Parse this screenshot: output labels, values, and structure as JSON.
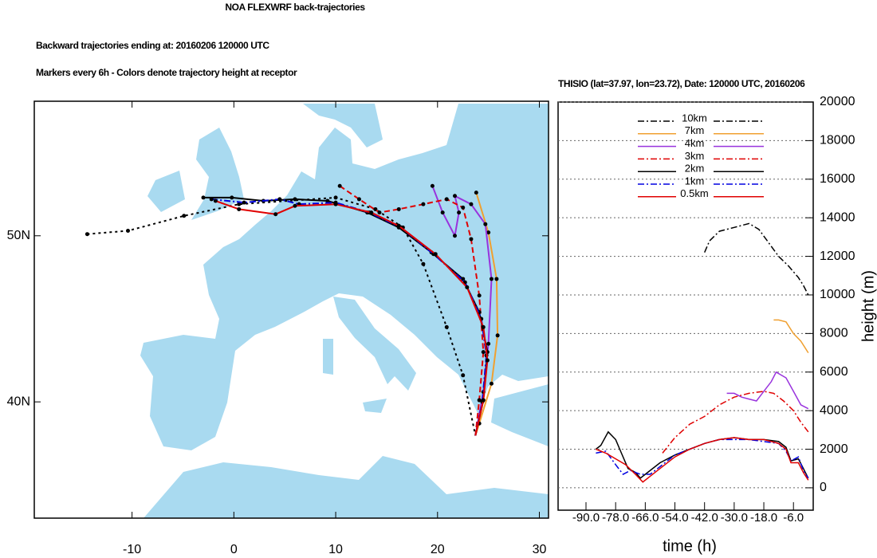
{
  "header": {
    "title": "NOA FLEXWRF back-trajectories",
    "subtitle": "Backward trajectories ending at: 20160206  120000 UTC",
    "note": "Markers every 6h - Colors denote trajectory height at receptor"
  },
  "chart_data": [
    {
      "type": "trajectory-map",
      "xlim": [
        -19.6,
        30.9
      ],
      "ylim": [
        33.0,
        58.1
      ],
      "xticks": [
        -10,
        0,
        10,
        20,
        30
      ],
      "yticks": [
        {
          "value": 40,
          "label": "40N"
        },
        {
          "value": 50,
          "label": "50N"
        }
      ],
      "series": [
        {
          "color": "#000000",
          "dash": "dot",
          "x": [
            -14.4,
            -10.4,
            -4.9,
            0.5,
            10.0,
            13.9,
            16.6,
            18.6,
            20.9,
            22.5,
            23.72
          ],
          "values": [
            50.1,
            50.3,
            51.2,
            51.9,
            52.3,
            51.6,
            50.5,
            48.3,
            44.5,
            41.6,
            37.97
          ]
        },
        {
          "color": "#f0a030",
          "dash": "solid",
          "x": [
            23.8,
            25.0,
            25.8,
            25.9,
            25.3,
            24.1,
            23.72
          ],
          "values": [
            52.6,
            50.2,
            47.4,
            44.0,
            41.1,
            38.7,
            37.97
          ]
        },
        {
          "color": "#9933dd",
          "dash": "solid",
          "x": [
            19.5,
            20.5,
            21.7,
            22.1,
            21.7,
            23.3,
            24.7,
            25.3,
            25.0,
            24.5,
            23.72
          ],
          "values": [
            53.0,
            51.4,
            50.0,
            51.4,
            52.4,
            51.9,
            50.7,
            47.4,
            43.5,
            40.6,
            37.97
          ]
        },
        {
          "color": "#e00000",
          "dash": "dash",
          "x": [
            10.4,
            12.3,
            14.3,
            16.2,
            18.6,
            20.9,
            22.5,
            23.3,
            24.1,
            24.5,
            24.1,
            23.72
          ],
          "values": [
            53.0,
            52.2,
            51.4,
            51.6,
            51.9,
            52.2,
            51.7,
            49.8,
            46.4,
            43.0,
            40.1,
            37.97
          ]
        },
        {
          "color": "#000000",
          "dash": "solid",
          "x": [
            -3.0,
            -0.2,
            2.9,
            6.0,
            9.2,
            13.1,
            16.2,
            19.4,
            22.5,
            24.1,
            24.9,
            24.5,
            23.72
          ],
          "values": [
            52.3,
            52.3,
            52.1,
            52.2,
            52.1,
            51.4,
            50.5,
            49.0,
            47.4,
            45.4,
            43.0,
            40.1,
            37.97
          ]
        },
        {
          "color": "#0000e0",
          "dash": "dashdot",
          "x": [
            -2.2,
            1.0,
            4.5,
            6.4,
            10.0,
            13.3,
            16.4,
            19.6,
            22.7,
            24.3,
            24.8,
            24.4,
            23.72
          ],
          "values": [
            52.2,
            52.0,
            52.2,
            51.9,
            52.0,
            51.4,
            50.5,
            48.9,
            47.2,
            45.0,
            42.8,
            40.0,
            37.97
          ]
        },
        {
          "color": "#e00000",
          "dash": "solid",
          "x": [
            -1.8,
            0.5,
            4.1,
            6.0,
            10.0,
            13.5,
            16.2,
            19.8,
            22.9,
            24.5,
            24.9,
            24.5,
            23.72
          ],
          "values": [
            52.1,
            51.6,
            51.3,
            51.8,
            51.9,
            51.4,
            50.6,
            48.9,
            46.9,
            44.5,
            42.5,
            40.1,
            37.97
          ]
        }
      ]
    },
    {
      "type": "line",
      "title": "THISIO (lat=37.97,  lon=23.72), Date: 120000 UTC, 20160206",
      "x_label": "time (h)",
      "y_label": "height (m)",
      "xlim": [
        -101.3,
        2
      ],
      "ylim": [
        -1160,
        20000
      ],
      "xticks": [
        {
          "value": -90,
          "label": "-90.0"
        },
        {
          "value": -78,
          "label": "-78.0"
        },
        {
          "value": -66,
          "label": "-66.0"
        },
        {
          "value": -54,
          "label": "-54.0"
        },
        {
          "value": -42,
          "label": "-42.0"
        },
        {
          "value": -30,
          "label": "-30.0"
        },
        {
          "value": -18,
          "label": "-18.0"
        },
        {
          "value": -6,
          "label": "-6.0"
        }
      ],
      "yticks": [
        0,
        2000,
        4000,
        6000,
        8000,
        10000,
        12000,
        14000,
        16000,
        18000,
        20000
      ],
      "grid": true,
      "series": [
        {
          "name": "10km",
          "color": "#000000",
          "dash": "dashdot",
          "x": [
            -42,
            -40,
            -36,
            -30,
            -24,
            -20,
            -16,
            -12,
            -8,
            -4,
            -2,
            0
          ],
          "values": [
            12200,
            12800,
            13300,
            13500,
            13700,
            13400,
            12700,
            12000,
            11500,
            10900,
            10500,
            10000
          ]
        },
        {
          "name": "7km",
          "color": "#f0a030",
          "dash": "solid",
          "x": [
            -14,
            -12,
            -9,
            -6,
            -3,
            -1,
            0
          ],
          "values": [
            8700,
            8700,
            8600,
            8000,
            7600,
            7200,
            7000
          ]
        },
        {
          "name": "4km",
          "color": "#9933dd",
          "dash": "solid",
          "x": [
            -33,
            -30,
            -27,
            -24,
            -21,
            -18,
            -15,
            -13,
            -9,
            -6,
            -3,
            0
          ],
          "values": [
            4900,
            4900,
            4700,
            4600,
            4500,
            5000,
            5500,
            6000,
            5700,
            5000,
            4300,
            4100
          ]
        },
        {
          "name": "3km",
          "color": "#e00000",
          "dash": "dashdot",
          "x": [
            -59,
            -54,
            -48,
            -42,
            -36,
            -30,
            -24,
            -18,
            -14,
            -10,
            -6,
            -3,
            0
          ],
          "values": [
            1800,
            2600,
            3300,
            3700,
            4300,
            4700,
            4900,
            5000,
            4900,
            4500,
            4000,
            3400,
            2900
          ]
        },
        {
          "name": "2km",
          "color": "#000000",
          "dash": "solid",
          "x": [
            -86,
            -84,
            -81,
            -78,
            -76,
            -73,
            -70,
            -68,
            -65,
            -60,
            -54,
            -48,
            -42,
            -36,
            -30,
            -24,
            -18,
            -12,
            -9,
            -7,
            -4,
            -2,
            0
          ],
          "values": [
            2000,
            2200,
            2900,
            2500,
            1900,
            1000,
            800,
            500,
            800,
            1300,
            1700,
            2000,
            2300,
            2500,
            2600,
            2500,
            2500,
            2400,
            2100,
            1400,
            1500,
            1000,
            500
          ]
        },
        {
          "name": "1km",
          "color": "#0000e0",
          "dash": "dashdot",
          "x": [
            -86,
            -82,
            -78,
            -75,
            -72,
            -68,
            -64,
            -60,
            -54,
            -48,
            -42,
            -36,
            -30,
            -24,
            -18,
            -12,
            -9,
            -7,
            -4,
            -2,
            0
          ],
          "values": [
            1800,
            1900,
            1200,
            700,
            900,
            700,
            700,
            1100,
            1700,
            2000,
            2300,
            2500,
            2500,
            2500,
            2400,
            2300,
            1900,
            1400,
            1600,
            900,
            500
          ]
        },
        {
          "name": "0.5km",
          "color": "#e00000",
          "dash": "solid",
          "x": [
            -86,
            -82,
            -78,
            -74,
            -70,
            -67,
            -64,
            -60,
            -54,
            -48,
            -42,
            -36,
            -30,
            -24,
            -18,
            -12,
            -9,
            -7,
            -4,
            -2,
            0
          ],
          "values": [
            2000,
            1800,
            1500,
            1200,
            700,
            300,
            600,
            1000,
            1600,
            2000,
            2300,
            2500,
            2600,
            2500,
            2500,
            2300,
            2000,
            1300,
            1300,
            800,
            400
          ]
        }
      ]
    }
  ]
}
